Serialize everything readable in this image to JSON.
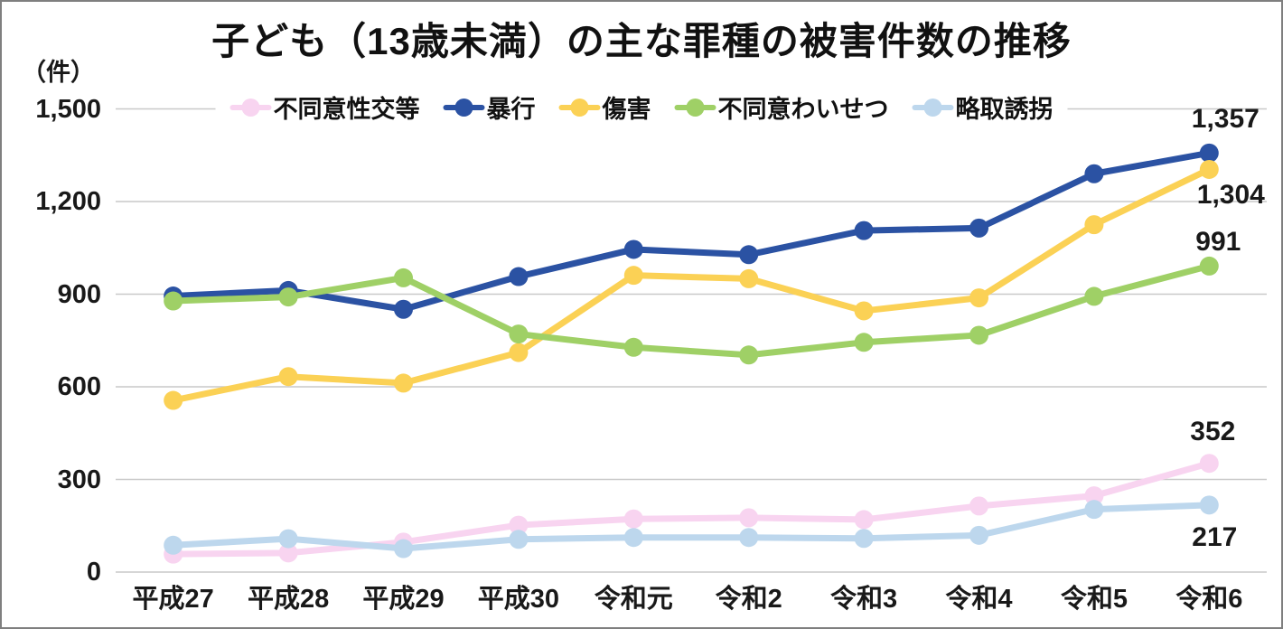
{
  "chart_data": {
    "type": "line",
    "title": "子ども（13歳未満）の主な罪種の被害件数の推移",
    "unit_label": "（件）",
    "categories": [
      "平成27",
      "平成28",
      "平成29",
      "平成30",
      "令和元",
      "令和2",
      "令和3",
      "令和4",
      "令和5",
      "令和6"
    ],
    "y_tick_labels": [
      "0",
      "300",
      "600",
      "900",
      "1,200",
      "1,500"
    ],
    "y_ticks": [
      0,
      300,
      600,
      900,
      1200,
      1500
    ],
    "ylim": [
      0,
      1500
    ],
    "grid": true,
    "legend_position": "top",
    "series": [
      {
        "name": "不同意性交等",
        "color": "#F8D4F0",
        "values": [
          58,
          62,
          97,
          152,
          172,
          176,
          170,
          214,
          247,
          352
        ],
        "end_label": "352"
      },
      {
        "name": "暴行",
        "color": "#2B52A3",
        "values": [
          894,
          912,
          851,
          957,
          1045,
          1028,
          1106,
          1114,
          1290,
          1357
        ],
        "end_label": "1,357"
      },
      {
        "name": "傷害",
        "color": "#FBD155",
        "values": [
          556,
          633,
          612,
          711,
          961,
          950,
          846,
          888,
          1125,
          1304
        ],
        "end_label": "1,304"
      },
      {
        "name": "不同意わいせつ",
        "color": "#9FD066",
        "values": [
          878,
          891,
          953,
          771,
          728,
          703,
          744,
          767,
          893,
          991
        ],
        "end_label": "991"
      },
      {
        "name": "略取誘拐",
        "color": "#BDD7ED",
        "values": [
          87,
          108,
          76,
          106,
          112,
          112,
          109,
          119,
          203,
          217
        ],
        "end_label": "217"
      }
    ]
  }
}
